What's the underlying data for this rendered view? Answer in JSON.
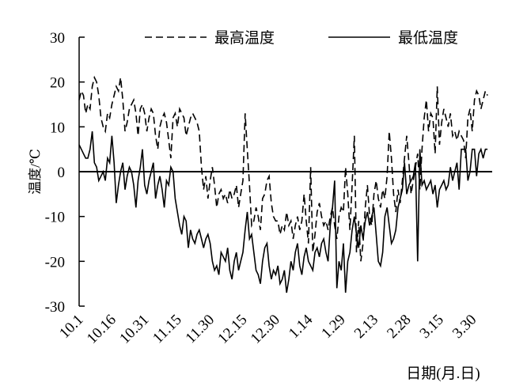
{
  "chart_data": {
    "type": "line",
    "xlabel": "日期(月.日)",
    "ylabel": "温度/℃",
    "ylim": [
      -30,
      30
    ],
    "yticks": [
      -30,
      -20,
      -10,
      0,
      10,
      20,
      30
    ],
    "legend": "top",
    "categories": [
      "10.1",
      null,
      null,
      null,
      null,
      null,
      null,
      null,
      null,
      null,
      null,
      null,
      null,
      null,
      null,
      "10.16",
      null,
      null,
      null,
      null,
      null,
      null,
      null,
      null,
      null,
      null,
      null,
      null,
      null,
      null,
      "10.31",
      null,
      null,
      null,
      null,
      null,
      null,
      null,
      null,
      null,
      null,
      null,
      null,
      null,
      null,
      "11.15",
      null,
      null,
      null,
      null,
      null,
      null,
      null,
      null,
      null,
      null,
      null,
      null,
      null,
      null,
      "11.30",
      null,
      null,
      null,
      null,
      null,
      null,
      null,
      null,
      null,
      null,
      null,
      null,
      null,
      null,
      "12.15",
      null,
      null,
      null,
      null,
      null,
      null,
      null,
      null,
      null,
      null,
      null,
      null,
      null,
      null,
      "12.30",
      null,
      null,
      null,
      null,
      null,
      null,
      null,
      null,
      null,
      null,
      null,
      null,
      null,
      null,
      "1.14",
      null,
      null,
      null,
      null,
      null,
      null,
      null,
      null,
      null,
      null,
      null,
      null,
      null,
      null,
      "1.29",
      null,
      null,
      null,
      null,
      null,
      null,
      null,
      null,
      null,
      null,
      null,
      null,
      null,
      null,
      "2.13",
      null,
      null,
      null,
      null,
      null,
      null,
      null,
      null,
      null,
      null,
      null,
      null,
      null,
      null,
      "2.28",
      null,
      null,
      null,
      null,
      null,
      null,
      null,
      null,
      null,
      null,
      null,
      null,
      null,
      null,
      "3.15",
      null,
      null,
      null,
      null,
      null,
      null,
      null,
      null,
      null,
      null,
      null,
      null,
      null,
      null,
      "3.30",
      null,
      null,
      null,
      null,
      null,
      null,
      null
    ],
    "series": [
      {
        "name": "最高温度",
        "color": "#000000",
        "dash": true,
        "values": [
          16,
          18,
          17,
          13,
          15,
          14,
          19,
          21,
          20,
          17,
          12,
          10,
          9,
          13,
          12,
          15,
          17,
          19,
          18,
          21,
          16,
          9,
          11,
          14,
          15,
          16,
          13,
          8,
          14,
          15,
          13,
          9,
          12,
          14,
          13,
          8,
          5,
          10,
          12,
          13,
          11,
          7,
          3,
          12,
          13,
          10,
          14,
          13,
          12,
          8,
          10,
          12,
          13,
          12,
          11,
          9,
          1,
          -4,
          -1,
          -6,
          -2,
          1,
          -3,
          -8,
          -5,
          -4,
          -6,
          -5,
          -7,
          -4,
          -6,
          -5,
          -3,
          -8,
          -5,
          -2,
          13,
          5,
          -3,
          -12,
          -11,
          -8,
          -10,
          -13,
          -6,
          -5,
          -2,
          -1,
          -7,
          -10,
          -11,
          -11,
          -14,
          -12,
          -13,
          -9,
          -12,
          -11,
          -15,
          -12,
          -10,
          -13,
          -11,
          -5,
          -11,
          -16,
          1,
          -18,
          -14,
          -9,
          -7,
          -10,
          -12,
          -11,
          -13,
          -10,
          -8,
          -12,
          -15,
          -10,
          -8,
          -9,
          1,
          -5,
          -13,
          -3,
          8,
          -18,
          -11,
          -20,
          -16,
          -8,
          -3,
          -10,
          -12,
          -5,
          -2,
          -6,
          -8,
          -4,
          -6,
          -1,
          9,
          3,
          -5,
          -9,
          -4,
          -7,
          -2,
          3,
          8,
          2,
          -5,
          -2,
          1,
          4,
          -4,
          5,
          12,
          16,
          9,
          13,
          12,
          4,
          19,
          6,
          11,
          14,
          12,
          10,
          13,
          8,
          9,
          7,
          9,
          8,
          7,
          3,
          12,
          14,
          9,
          16,
          18,
          17,
          14,
          16,
          18,
          17
        ]
      },
      {
        "name": "最低温度",
        "color": "#000000",
        "dash": false,
        "values": [
          6,
          5,
          4,
          3,
          3,
          5,
          9,
          2,
          1,
          -2,
          -1,
          0,
          -2,
          3,
          2,
          8,
          2,
          -7,
          -3,
          0,
          2,
          -4,
          -1,
          1,
          0,
          -3,
          -8,
          -2,
          1,
          5,
          -3,
          -5,
          -2,
          0,
          2,
          -6,
          -3,
          -1,
          -4,
          -8,
          -2,
          -3,
          1,
          0,
          -6,
          -9,
          -12,
          -14,
          -10,
          -11,
          -17,
          -13,
          -15,
          -16,
          -14,
          -13,
          -15,
          -17,
          -15,
          -14,
          -16,
          -20,
          -22,
          -21,
          -23,
          -18,
          -19,
          -20,
          -17,
          -22,
          -24,
          -20,
          -18,
          -22,
          -20,
          -18,
          -13,
          -9,
          -15,
          -14,
          -18,
          -22,
          -23,
          -25,
          -20,
          -17,
          -16,
          -21,
          -24,
          -22,
          -23,
          -21,
          -25,
          -24,
          -22,
          -27,
          -24,
          -20,
          -22,
          -18,
          -16,
          -21,
          -23,
          -19,
          -17,
          -20,
          -21,
          -22,
          -18,
          -17,
          -19,
          -16,
          -15,
          -18,
          -20,
          -12,
          -8,
          -2,
          -26,
          -20,
          -22,
          -16,
          -27,
          -20,
          -18,
          -13,
          -10,
          -14,
          -17,
          -12,
          -15,
          -11,
          -9,
          -12,
          -10,
          -8,
          -14,
          -20,
          -21,
          -18,
          -10,
          -8,
          -12,
          -16,
          -15,
          -13,
          -8,
          -6,
          -4,
          2,
          -5,
          -3,
          -2,
          -1,
          2,
          -20,
          5,
          -3,
          -2,
          -4,
          -3,
          -2,
          -5,
          -3,
          -8,
          -4,
          -3,
          -2,
          -4,
          -3,
          1,
          -2,
          0,
          2,
          -4,
          5,
          5,
          5,
          -2,
          0,
          5,
          5,
          -1,
          4,
          5,
          3,
          5,
          5
        ]
      }
    ]
  }
}
